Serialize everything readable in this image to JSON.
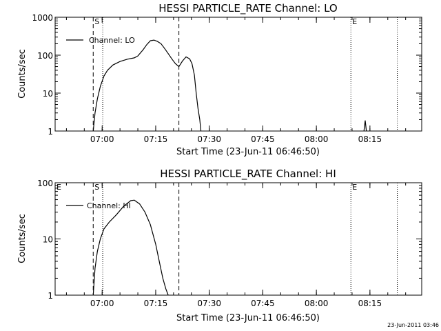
{
  "chart_data": [
    {
      "type": "line",
      "title": "HESSI PARTICLE_RATE Channel: LO",
      "xlabel": "Start Time (23-Jun-11 06:46:50)",
      "ylabel": "Counts/sec",
      "yscale": "log",
      "ylim": [
        1,
        1000
      ],
      "xlim": [
        "06:46:50",
        "08:29:30"
      ],
      "xticks": [
        "07:00",
        "07:15",
        "07:30",
        "07:45",
        "08:00",
        "08:15"
      ],
      "yticks": [
        "1",
        "10",
        "100",
        "1000"
      ],
      "legend": {
        "entry": "Channel: LO",
        "placement": "top-left"
      },
      "dashed_lines": [
        "06:57:30",
        "07:21:30"
      ],
      "dotted_lines": [
        "07:00:10",
        "08:09:40",
        "08:22:40"
      ],
      "markers": [
        {
          "label": "S",
          "x": "06:57:30"
        },
        {
          "label": "E",
          "x": "08:09:40"
        }
      ],
      "series": [
        {
          "x": [
            "06:57:30",
            "06:58:00",
            "06:58:40",
            "06:59:30",
            "07:00:30",
            "07:01:30",
            "07:03:00",
            "07:05:00",
            "07:07:00",
            "07:09:00",
            "07:10:00",
            "07:11:30",
            "07:12:30",
            "07:13:30",
            "07:14:30",
            "07:15:30",
            "07:16:30",
            "07:17:30",
            "07:18:30",
            "07:19:30",
            "07:20:30",
            "07:21:30",
            "07:22:30",
            "07:23:30",
            "07:24:30",
            "07:25:10",
            "07:25:50",
            "07:26:20",
            "07:26:50",
            "07:27:20",
            "07:27:40"
          ],
          "values": [
            1,
            3,
            7,
            15,
            28,
            40,
            55,
            68,
            78,
            85,
            95,
            140,
            190,
            240,
            250,
            230,
            200,
            150,
            110,
            80,
            60,
            50,
            70,
            90,
            80,
            60,
            30,
            10,
            4,
            2,
            1
          ]
        },
        {
          "x": [
            "08:13:20",
            "08:13:40",
            "08:14:00"
          ],
          "values": [
            1,
            1.9,
            1
          ]
        }
      ]
    },
    {
      "type": "line",
      "title": "HESSI PARTICLE_RATE Channel: HI",
      "xlabel": "Start Time (23-Jun-11 06:46:50)",
      "ylabel": "Counts/sec",
      "yscale": "log",
      "ylim": [
        1,
        100
      ],
      "xlim": [
        "06:46:50",
        "08:29:30"
      ],
      "xticks": [
        "07:00",
        "07:15",
        "07:30",
        "07:45",
        "08:00",
        "08:15"
      ],
      "yticks": [
        "1",
        "10",
        "100"
      ],
      "legend": {
        "entry": "Channel: HI",
        "placement": "top-left"
      },
      "dashed_lines": [
        "06:57:30",
        "07:21:30"
      ],
      "dotted_lines": [
        "07:00:10",
        "08:09:40",
        "08:22:40"
      ],
      "markers": [
        {
          "label": "E",
          "x": "06:46:50"
        },
        {
          "label": "S",
          "x": "06:57:30"
        },
        {
          "label": "E",
          "x": "08:09:40"
        }
      ],
      "series": [
        {
          "x": [
            "06:57:30",
            "06:58:00",
            "06:58:40",
            "06:59:30",
            "07:00:30",
            "07:02:00",
            "07:04:00",
            "07:06:00",
            "07:08:00",
            "07:09:00",
            "07:10:30",
            "07:12:00",
            "07:13:30",
            "07:15:00",
            "07:16:00",
            "07:17:00",
            "07:17:50",
            "07:18:30"
          ],
          "values": [
            1,
            3,
            6,
            10,
            15,
            20,
            27,
            38,
            48,
            49,
            42,
            30,
            18,
            8,
            4,
            2,
            1.3,
            1
          ]
        }
      ]
    }
  ],
  "footer": "23-Jun-2011 03:46"
}
